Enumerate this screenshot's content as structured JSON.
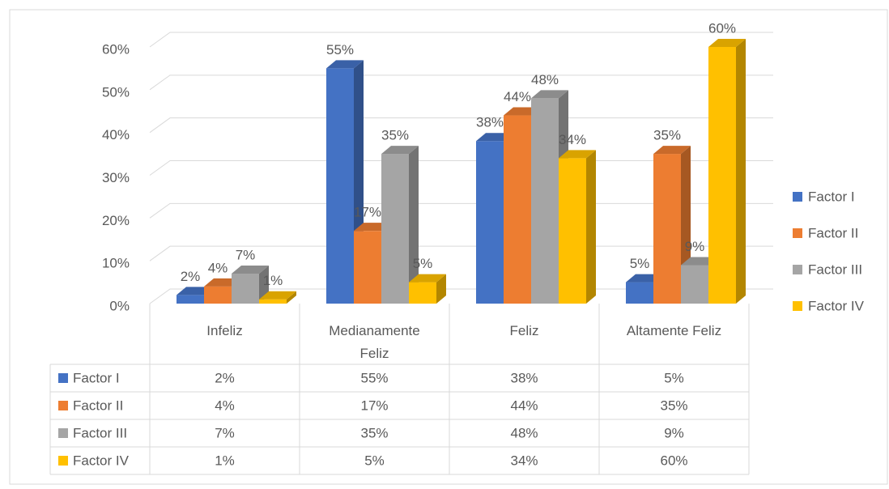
{
  "chart_data": {
    "type": "bar3d",
    "categories": [
      "Infeliz",
      "Medianamente Feliz",
      "Feliz",
      "Altamente Feliz"
    ],
    "series": [
      {
        "name": "Factor I",
        "color": "#4472c4",
        "values": [
          2,
          55,
          38,
          5
        ],
        "value_labels": [
          "2%",
          "55%",
          "38%",
          "5%"
        ]
      },
      {
        "name": "Factor II",
        "color": "#ed7d31",
        "values": [
          4,
          17,
          44,
          35
        ],
        "value_labels": [
          "4%",
          "17%",
          "44%",
          "35%"
        ]
      },
      {
        "name": "Factor III",
        "color": "#a5a5a5",
        "values": [
          7,
          35,
          48,
          9
        ],
        "value_labels": [
          "7%",
          "35%",
          "48%",
          "9%"
        ]
      },
      {
        "name": "Factor IV",
        "color": "#ffc000",
        "values": [
          1,
          5,
          34,
          60
        ],
        "value_labels": [
          "1%",
          "5%",
          "34%",
          "60%"
        ]
      }
    ],
    "ylim": [
      0,
      60
    ],
    "yticks": [
      {
        "value": 0,
        "label": "0%"
      },
      {
        "value": 10,
        "label": "10%"
      },
      {
        "value": 20,
        "label": "20%"
      },
      {
        "value": 30,
        "label": "30%"
      },
      {
        "value": 40,
        "label": "40%"
      },
      {
        "value": 50,
        "label": "50%"
      },
      {
        "value": 60,
        "label": "60%"
      }
    ],
    "grid": true,
    "legend": "right",
    "data_table": true
  }
}
